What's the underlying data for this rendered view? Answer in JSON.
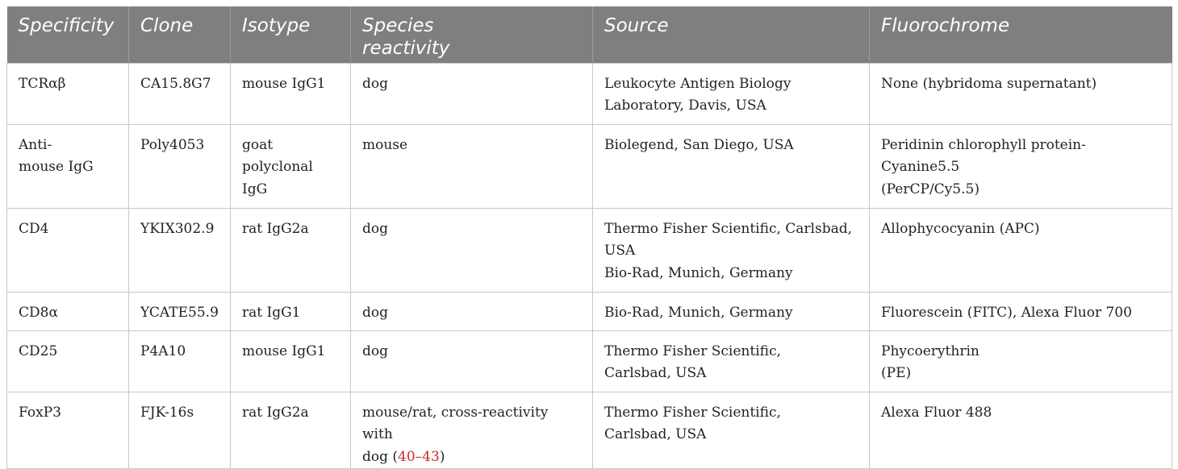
{
  "table": {
    "headers": [
      "Specificity",
      "Clone",
      "Isotype",
      "Species\nreactivity",
      "Source",
      "Fluorochrome"
    ],
    "rows": [
      {
        "specificity": "TCRαβ",
        "clone": "CA15.8G7",
        "isotype": "mouse IgG1",
        "species": "dog",
        "species_ref_open": "",
        "species_ref": "",
        "species_ref_close": "",
        "source": "Leukocyte Antigen Biology\nLaboratory, Davis, USA",
        "fluorochrome": "None (hybridoma supernatant)"
      },
      {
        "specificity": "Anti-\nmouse IgG",
        "clone": "Poly4053",
        "isotype": "goat\npolyclonal\nIgG",
        "species": "mouse",
        "species_ref_open": "",
        "species_ref": "",
        "species_ref_close": "",
        "source": "Biolegend, San Diego, USA",
        "fluorochrome": "Peridinin chlorophyll protein-Cyanine5.5\n(PerCP/Cy5.5)"
      },
      {
        "specificity": "CD4",
        "clone": "YKIX302.9",
        "isotype": "rat IgG2a",
        "species": "dog",
        "species_ref_open": "",
        "species_ref": "",
        "species_ref_close": "",
        "source": "Thermo Fisher Scientific, Carlsbad,\nUSA\nBio-Rad, Munich, Germany",
        "fluorochrome": "Allophycocyanin (APC)"
      },
      {
        "specificity": "CD8α",
        "clone": "YCATE55.9",
        "isotype": "rat IgG1",
        "species": "dog",
        "species_ref_open": "",
        "species_ref": "",
        "species_ref_close": "",
        "source": "Bio-Rad, Munich, Germany",
        "fluorochrome": "Fluorescein (FITC), Alexa Fluor 700"
      },
      {
        "specificity": "CD25",
        "clone": "P4A10",
        "isotype": "mouse IgG1",
        "species": "dog",
        "species_ref_open": "",
        "species_ref": "",
        "species_ref_close": "",
        "source": "Thermo Fisher Scientific,\nCarlsbad, USA",
        "fluorochrome": "Phycoerythrin\n(PE)"
      },
      {
        "specificity": "FoxP3",
        "clone": "FJK-16s",
        "isotype": "rat IgG2a",
        "species": "mouse/rat, cross-reactivity with\ndog",
        "species_ref_open": " (",
        "species_ref": "40–43",
        "species_ref_close": ")",
        "source": "Thermo Fisher Scientific,\nCarlsbad, USA",
        "fluorochrome": "Alexa Fluor 488"
      }
    ]
  },
  "colors": {
    "header_bg": "#7f7f7f",
    "header_text": "#ffffff",
    "border": "#c8c8c8",
    "reference_link": "#c0312b"
  }
}
